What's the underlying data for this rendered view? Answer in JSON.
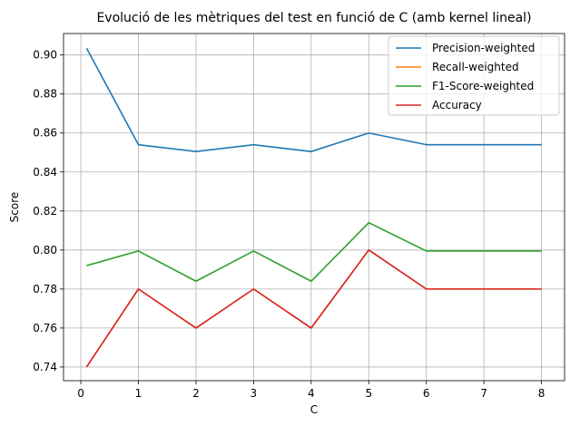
{
  "chart_data": {
    "type": "line",
    "title": "Evolució de les mètriques del test en funció de C (amb kernel lineal)",
    "xlabel": "C",
    "ylabel": "Score",
    "x": [
      0.1,
      1,
      2,
      3,
      4,
      5,
      6,
      7,
      8
    ],
    "xlim": [
      -0.3,
      8.4
    ],
    "ylim": [
      0.733,
      0.911
    ],
    "xticks": [
      0,
      1,
      2,
      3,
      4,
      5,
      6,
      7,
      8
    ],
    "yticks": [
      0.74,
      0.76,
      0.78,
      0.8,
      0.82,
      0.84,
      0.86,
      0.88,
      0.9
    ],
    "grid": true,
    "legend_position": "top-right",
    "series": [
      {
        "name": "Precision-weighted",
        "color": "#1f77b4",
        "values": [
          0.9035,
          0.854,
          0.8505,
          0.854,
          0.8505,
          0.86,
          0.854,
          0.854,
          0.854
        ]
      },
      {
        "name": "Recall-weighted",
        "color": "#ff7f0e",
        "values": [
          0.74,
          0.78,
          0.76,
          0.78,
          0.76,
          0.8,
          0.78,
          0.78,
          0.78
        ]
      },
      {
        "name": "F1-Score-weighted",
        "color": "#2ca02c",
        "values": [
          0.792,
          0.7995,
          0.784,
          0.7995,
          0.784,
          0.814,
          0.7995,
          0.7995,
          0.7995
        ]
      },
      {
        "name": "Accuracy",
        "color": "#d62728",
        "values": [
          0.74,
          0.78,
          0.76,
          0.78,
          0.76,
          0.8,
          0.78,
          0.78,
          0.78
        ]
      }
    ]
  }
}
